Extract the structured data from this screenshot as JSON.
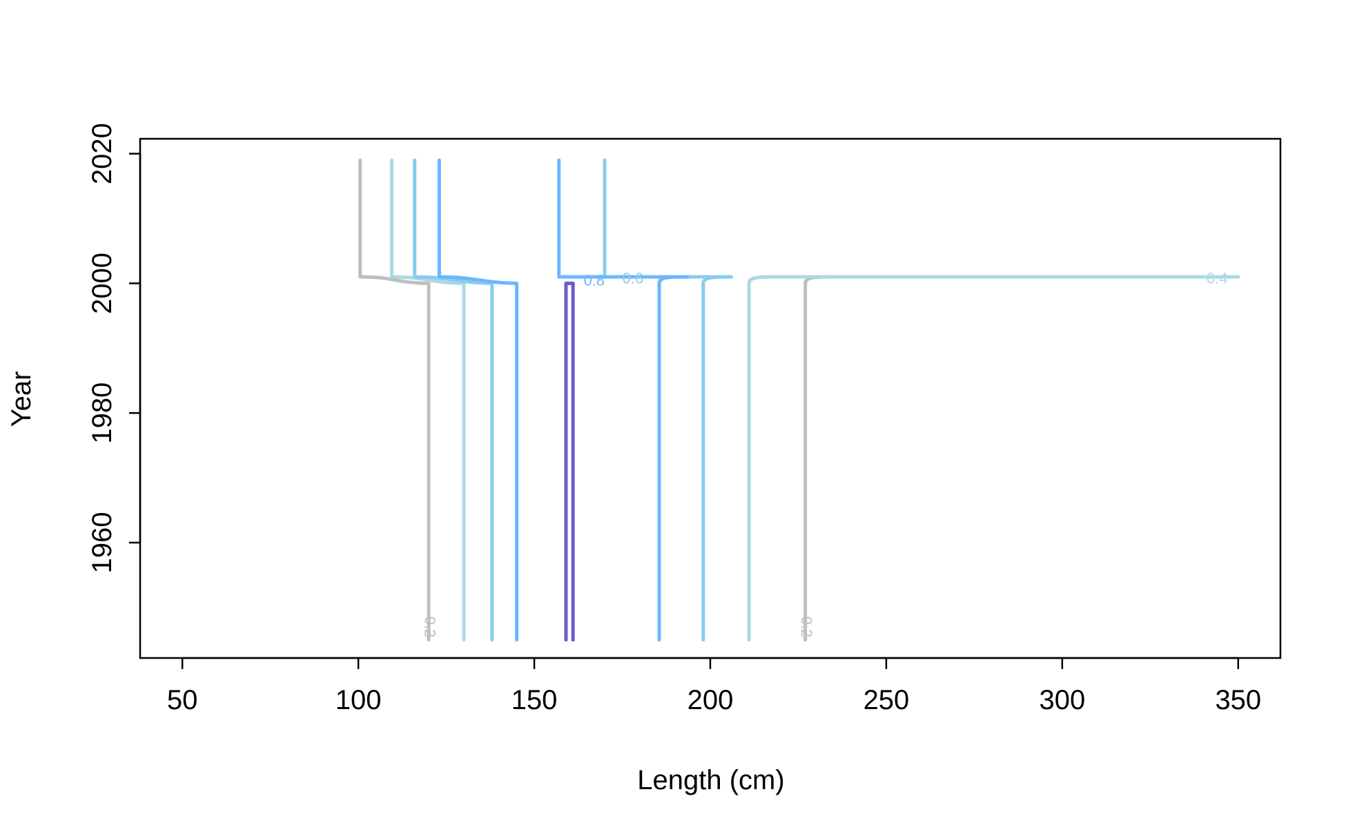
{
  "chart_data": {
    "type": "contour",
    "title": "",
    "xlabel": "Length (cm)",
    "ylabel": "Year",
    "xlim": [
      38,
      362
    ],
    "ylim": [
      1942.2,
      2022.3
    ],
    "x_ticks": [
      50,
      100,
      150,
      200,
      250,
      300,
      350
    ],
    "x_tick_labels": [
      "50",
      "100",
      "150",
      "200",
      "250",
      "300",
      "350"
    ],
    "y_ticks": [
      1960,
      1980,
      2000,
      2020
    ],
    "y_tick_labels": [
      "1960",
      "1980",
      "2000",
      "2020"
    ],
    "grid": false,
    "legend": "none",
    "year_before": 2000,
    "year_after": 2001,
    "year_min": 1945,
    "year_max": 2019,
    "levels": [
      {
        "name": "0.2",
        "color": "#bebebe",
        "label_text": "0.2",
        "before_left": 120,
        "before_right": 227,
        "after_left": 100.5,
        "after_right": 350
      },
      {
        "name": "0.4",
        "color": "#add8e6",
        "label_text": "0.4",
        "before_left": 130,
        "before_right": 211,
        "after_left": 109.5,
        "after_right": 350
      },
      {
        "name": "0.6",
        "color": "#87ceeb",
        "label_text": "0.6",
        "before_left": 138,
        "before_right": 198,
        "after_left": 116,
        "after_right": 170
      },
      {
        "name": "0.8",
        "color": "#6cb6ff",
        "label_text": "0.8",
        "before_left": 145,
        "before_right": 185.5,
        "after_left": 123,
        "after_right": 157
      },
      {
        "name": "1.0",
        "color": "#6a5acd",
        "label_text": "",
        "before_left": 159,
        "before_right": 161,
        "after_left": null,
        "after_right": null
      }
    ],
    "contour_labels": [
      {
        "text": "0.2",
        "x": 120,
        "y": 1947,
        "rotate": 90,
        "color": "#bebebe"
      },
      {
        "text": "0.2",
        "x": 227,
        "y": 1947,
        "rotate": 90,
        "color": "#bebebe"
      },
      {
        "text": "0.8",
        "x": 167,
        "y": 2000.3,
        "rotate": 0,
        "color": "#6cb6ff"
      },
      {
        "text": "0.6",
        "x": 178,
        "y": 2000.6,
        "rotate": 0,
        "color": "#87ceeb"
      },
      {
        "text": "0.4",
        "x": 344,
        "y": 2000.6,
        "rotate": 0,
        "color": "#add8e6"
      }
    ]
  }
}
